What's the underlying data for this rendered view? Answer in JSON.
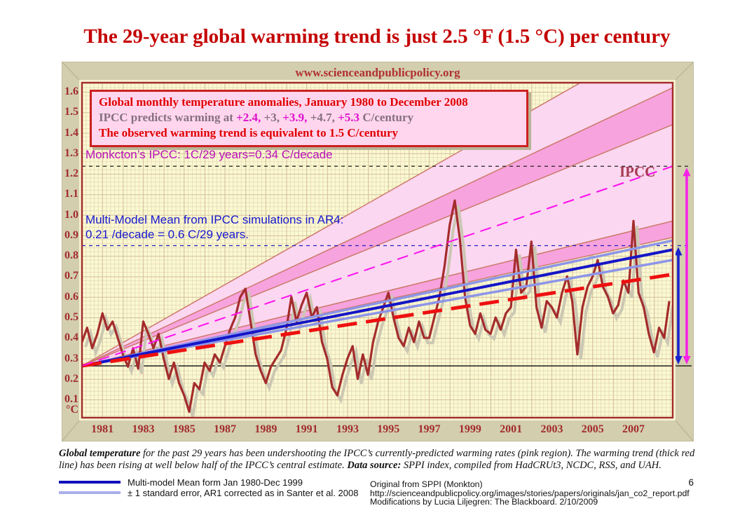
{
  "title": "The 29-year global warming trend is just 2.5 °F (1.5 °C) per century",
  "watermark": "www.scienceandpublicpolicy.org",
  "page_number": "6",
  "legend_box": {
    "line1": "Global monthly temperature anomalies, January 1980 to December 2008",
    "line2_segments": [
      {
        "text": "IPCC predicts warming at ",
        "magenta": false
      },
      {
        "text": "+2.4,",
        "magenta": true
      },
      {
        "text": " +3, ",
        "magenta": false
      },
      {
        "text": "+3.9,",
        "magenta": true
      },
      {
        "text": " +4.7, ",
        "magenta": false
      },
      {
        "text": "+5.3",
        "magenta": true
      },
      {
        "text": " C/century",
        "magenta": false
      }
    ],
    "line3": "The observed warming trend is equivalent to 1.5 C/century"
  },
  "annotations": {
    "monckton": "Monkcton’s IPCC: 1C/29 years=0.34 C/decade",
    "multimodel_line1": "Multi-Model Mean from IPCC simulations in AR4:",
    "multimodel_line2": "0.21 /decade = 0.6 C/29 years.",
    "ipcc_label": "IPCC"
  },
  "caption": {
    "bold1": "Global temperature",
    "text1": " for the past 29 years has been undershooting the IPCC’s currently-predicted warming rates (pink region). The warming trend (thick red line) has been rising at well below half of the IPCC’s central estimate. ",
    "bold2": "Data source:",
    "text2": " SPPI index, compiled from HadCRUt3, NCDC, RSS, and UAH."
  },
  "bottom_legend": [
    {
      "swatch_color": "#1111bb",
      "label": "Multi-model Mean form Jan 1980-Dec 1999"
    },
    {
      "swatch_color": "#a9afe9",
      "label": "± 1 standard error, AR1 corrected as in Santer et al. 2008"
    }
  ],
  "credits": [
    "Original from SPPI (Monkton)",
    "http://scienceandpublicpolicy.org/images/stories/papers/originals/jan_co2_report.pdf",
    "Modifications by Lucia Liljegren: The Blackboard. 2/10/2009"
  ],
  "chart_data": {
    "type": "line",
    "title": "Global monthly temperature anomalies, January 1980 to December 2008",
    "xlim": [
      1980.0,
      2008.92
    ],
    "ylim": [
      0.0,
      1.64
    ],
    "grid": true,
    "y_unit": "°C",
    "y_ticks": [
      "1.6",
      "1.5",
      "1.4",
      "1.3",
      "1.2",
      "1.1",
      "1.0",
      "0.9",
      "0.8",
      "0.7",
      "0.6",
      "0.5",
      "0.4",
      "0.3",
      "0.2",
      "0.1"
    ],
    "x_ticks": [
      "1981",
      "1983",
      "1985",
      "1987",
      "1989",
      "1991",
      "1993",
      "1995",
      "1997",
      "1999",
      "2001",
      "2003",
      "2005",
      "2007"
    ],
    "series": [
      {
        "name": "SPPI index (HadCRUt3, NCDC, RSS, UAH)",
        "color": "#a32c2c",
        "x_start": 1980.0,
        "x_step": 0.25,
        "values": [
          0.38,
          0.45,
          0.35,
          0.42,
          0.52,
          0.44,
          0.48,
          0.4,
          0.32,
          0.26,
          0.35,
          0.25,
          0.48,
          0.42,
          0.35,
          0.42,
          0.3,
          0.2,
          0.28,
          0.18,
          0.12,
          0.04,
          0.18,
          0.15,
          0.28,
          0.24,
          0.32,
          0.28,
          0.36,
          0.44,
          0.5,
          0.6,
          0.64,
          0.48,
          0.32,
          0.24,
          0.18,
          0.26,
          0.3,
          0.34,
          0.44,
          0.6,
          0.48,
          0.56,
          0.62,
          0.5,
          0.55,
          0.38,
          0.3,
          0.16,
          0.12,
          0.22,
          0.3,
          0.36,
          0.2,
          0.32,
          0.22,
          0.38,
          0.48,
          0.55,
          0.62,
          0.5,
          0.4,
          0.36,
          0.45,
          0.38,
          0.48,
          0.4,
          0.4,
          0.5,
          0.6,
          0.75,
          0.95,
          1.07,
          0.88,
          0.6,
          0.46,
          0.42,
          0.52,
          0.44,
          0.42,
          0.5,
          0.44,
          0.52,
          0.55,
          0.83,
          0.62,
          0.65,
          0.87,
          0.55,
          0.45,
          0.58,
          0.55,
          0.5,
          0.62,
          0.7,
          0.58,
          0.32,
          0.55,
          0.65,
          0.7,
          0.78,
          0.65,
          0.6,
          0.52,
          0.56,
          0.68,
          0.62,
          0.97,
          0.62,
          0.55,
          0.42,
          0.33,
          0.45,
          0.4,
          0.58
        ]
      }
    ],
    "origin": {
      "x": 1980.0,
      "v": 0.264
    },
    "ipcc_fan": {
      "rates_c_per_century": [
        2.4,
        3.0,
        3.9,
        4.7,
        5.3
      ],
      "end_values": [
        0.89,
        0.97,
        1.44,
        1.62,
        1.9
      ],
      "light_fill": "#fbd7f1",
      "dark_fill": "#f7a3de",
      "edge_color": "#cc7a6a"
    },
    "trend_lines": [
      {
        "name": "std-error-upper",
        "color": "#8d95e8",
        "width": 3.5,
        "dash": "",
        "end_v": 0.875
      },
      {
        "name": "std-error-lower",
        "color": "#8d95e8",
        "width": 3.5,
        "dash": "",
        "end_v": 0.78
      },
      {
        "name": "multi-model-mean",
        "rate": "0.21 C/decade",
        "color": "#1515c8",
        "width": 4,
        "dash": "",
        "end_v": 0.83
      },
      {
        "name": "observed-trend",
        "rate": "1.5 C/century",
        "color": "#ee1010",
        "width": 5,
        "dash": "28,13",
        "end_v": 0.71
      },
      {
        "name": "monckton-ipcc",
        "rate": "0.34 C/decade",
        "color": "#ff10ee",
        "width": 2,
        "dash": "16,9",
        "end_v": 1.237
      }
    ],
    "reference_lines": [
      {
        "name": "monckton-level",
        "v": 1.237,
        "color": "#222222",
        "dash": "5,5"
      },
      {
        "name": "multimodel-level",
        "v": 0.85,
        "color": "#2020bb",
        "dash": "5,5"
      },
      {
        "name": "baseline",
        "v": 0.264,
        "color": "#111111",
        "dash": ""
      }
    ],
    "arrows": [
      {
        "name": "ipcc-range-arrow",
        "color": "#f822e8",
        "v_top": 1.237,
        "v_bottom": 0.264
      },
      {
        "name": "multimodel-range-arrow",
        "color": "#1822cc",
        "v_top": 0.85,
        "v_bottom": 0.264
      }
    ]
  }
}
